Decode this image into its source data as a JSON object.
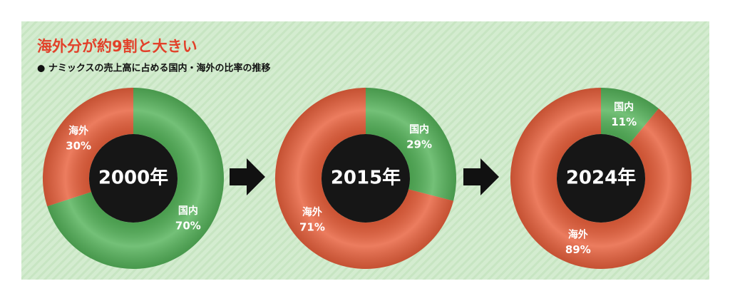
{
  "header": {
    "title": "海外分が約9割と大きい",
    "subtitle": "● ナミックスの売上高に占める国内・海外の比率の推移"
  },
  "chart_data": [
    {
      "type": "pie",
      "title": "2000年",
      "categories": [
        "国内",
        "海外"
      ],
      "values": [
        70,
        30
      ],
      "value_labels": [
        "70%",
        "30%"
      ],
      "colors": [
        "#55b35a",
        "#e8603c"
      ]
    },
    {
      "type": "pie",
      "title": "2015年",
      "categories": [
        "国内",
        "海外"
      ],
      "values": [
        29,
        71
      ],
      "value_labels": [
        "29%",
        "71%"
      ],
      "colors": [
        "#55b35a",
        "#e8603c"
      ]
    },
    {
      "type": "pie",
      "title": "2024年",
      "categories": [
        "国内",
        "海外"
      ],
      "values": [
        11,
        89
      ],
      "value_labels": [
        "11%",
        "89%"
      ],
      "colors": [
        "#55b35a",
        "#e8603c"
      ]
    }
  ]
}
